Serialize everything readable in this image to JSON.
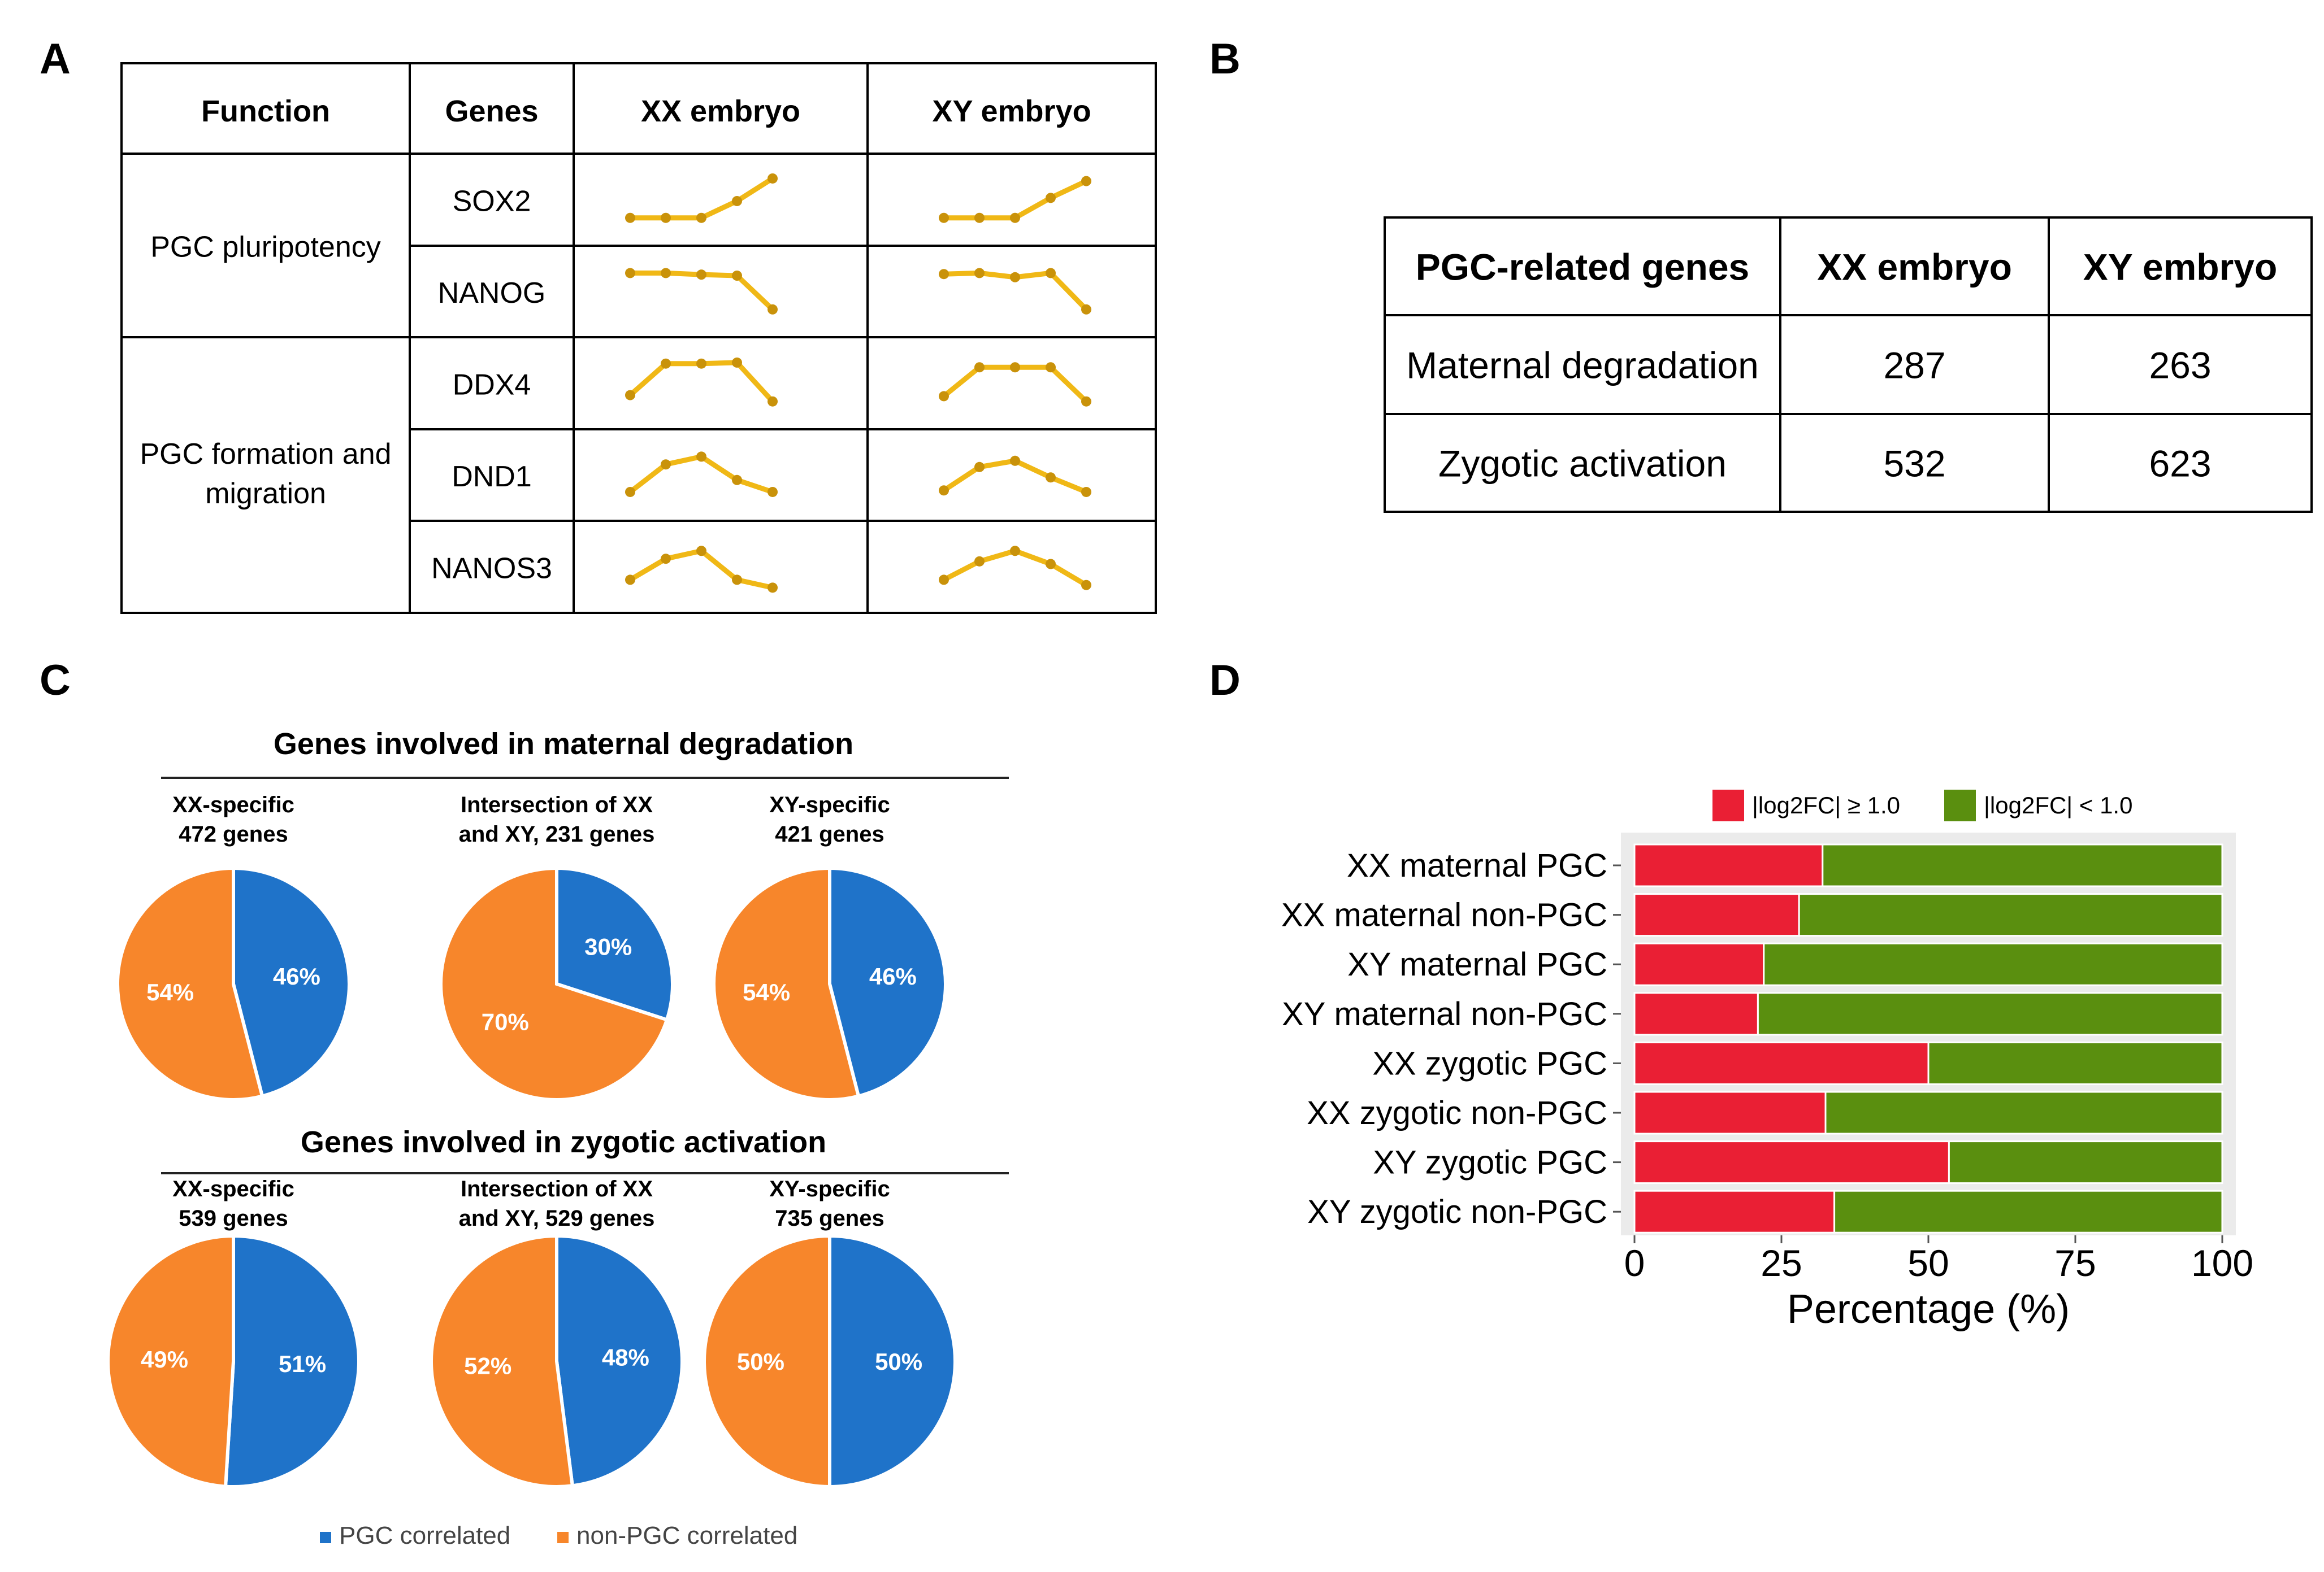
{
  "panel_labels": {
    "a": "A",
    "b": "B",
    "c": "C",
    "d": "D"
  },
  "colors": {
    "trend": "#f0b816",
    "pgc": "#1f73c9",
    "non_pgc": "#f7862b",
    "red": "#ea1f34",
    "green": "#5a8f0f",
    "panel_bg": "#ebebeb"
  },
  "chart_data": [
    {
      "panel": "A",
      "type": "table",
      "headers": [
        "Function",
        "Genes",
        "XX embryo",
        "XY embryo"
      ],
      "groups": [
        {
          "function": "PGC pluripotency",
          "genes": [
            "SOX2",
            "NANOG"
          ]
        },
        {
          "function": "PGC formation and migration",
          "genes": [
            "DDX4",
            "DND1",
            "NANOS3"
          ]
        }
      ],
      "trend_rows": [
        {
          "gene": "SOX2",
          "xx": [
            0.1,
            0.1,
            0.1,
            0.42,
            0.85
          ],
          "xy": [
            0.1,
            0.1,
            0.1,
            0.48,
            0.8
          ]
        },
        {
          "gene": "NANOG",
          "xx": [
            0.8,
            0.8,
            0.77,
            0.75,
            0.1
          ],
          "xy": [
            0.78,
            0.8,
            0.72,
            0.8,
            0.1
          ]
        },
        {
          "gene": "DDX4",
          "xx": [
            0.22,
            0.82,
            0.82,
            0.84,
            0.1
          ],
          "xy": [
            0.2,
            0.75,
            0.75,
            0.75,
            0.1
          ]
        },
        {
          "gene": "DND1",
          "xx": [
            0.12,
            0.65,
            0.8,
            0.35,
            0.12
          ],
          "xy": [
            0.15,
            0.6,
            0.72,
            0.4,
            0.12
          ]
        },
        {
          "gene": "NANOS3",
          "xx": [
            0.2,
            0.6,
            0.75,
            0.2,
            0.05
          ],
          "xy": [
            0.2,
            0.55,
            0.75,
            0.5,
            0.1
          ]
        }
      ]
    },
    {
      "panel": "B",
      "type": "table",
      "headers": [
        "PGC-related genes",
        "XX embryo",
        "XY embryo"
      ],
      "rows": [
        {
          "label": "Maternal degradation",
          "xx": 287,
          "xy": 263
        },
        {
          "label": "Zygotic activation",
          "xx": 532,
          "xy": 623
        }
      ]
    },
    {
      "panel": "C",
      "type": "pie",
      "legend": [
        "PGC correlated",
        "non-PGC correlated"
      ],
      "rows": [
        {
          "title": "Genes involved in maternal degradation",
          "pies": [
            {
              "title_lines": [
                "XX-specific",
                "472 genes"
              ],
              "pgc": 46,
              "non_pgc": 54,
              "pgc_label": "46%",
              "non_pgc_label": "54%"
            },
            {
              "title_lines": [
                "Intersection of XX",
                "and XY, 231 genes"
              ],
              "pgc": 30,
              "non_pgc": 70,
              "pgc_label": "30%",
              "non_pgc_label": "70%"
            },
            {
              "title_lines": [
                "XY-specific",
                "421 genes"
              ],
              "pgc": 46,
              "non_pgc": 54,
              "pgc_label": "46%",
              "non_pgc_label": "54%"
            }
          ]
        },
        {
          "title": "Genes involved in zygotic activation",
          "pies": [
            {
              "title_lines": [
                "XX-specific",
                "539 genes"
              ],
              "pgc": 51,
              "non_pgc": 49,
              "pgc_label": "51%",
              "non_pgc_label": "49%"
            },
            {
              "title_lines": [
                "Intersection of XX",
                "and XY, 529 genes"
              ],
              "pgc": 48,
              "non_pgc": 52,
              "pgc_label": "48%",
              "non_pgc_label": "52%"
            },
            {
              "title_lines": [
                "XY-specific",
                "735 genes"
              ],
              "pgc": 50,
              "non_pgc": 50,
              "pgc_label": "50%",
              "non_pgc_label": "50%"
            }
          ]
        }
      ]
    },
    {
      "panel": "D",
      "type": "bar",
      "orientation": "horizontal",
      "stacked": true,
      "categories": [
        "XX maternal PGC",
        "XX maternal non-PGC",
        "XY maternal PGC",
        "XY maternal non-PGC",
        "XX zygotic PGC",
        "XX zygotic non-PGC",
        "XY zygotic PGC",
        "XY zygotic non-PGC"
      ],
      "series": [
        {
          "name": "|log2FC| ≥ 1.0",
          "values": [
            32,
            28,
            22,
            21,
            50,
            32.5,
            53.5,
            34
          ]
        },
        {
          "name": "|log2FC| < 1.0",
          "values": [
            68,
            72,
            78,
            79,
            50,
            67.5,
            46.5,
            66
          ]
        }
      ],
      "xlabel": "Percentage (%)",
      "xlim": [
        0,
        100
      ],
      "xticks": [
        0,
        25,
        50,
        75,
        100
      ],
      "legend_position": "top"
    }
  ]
}
